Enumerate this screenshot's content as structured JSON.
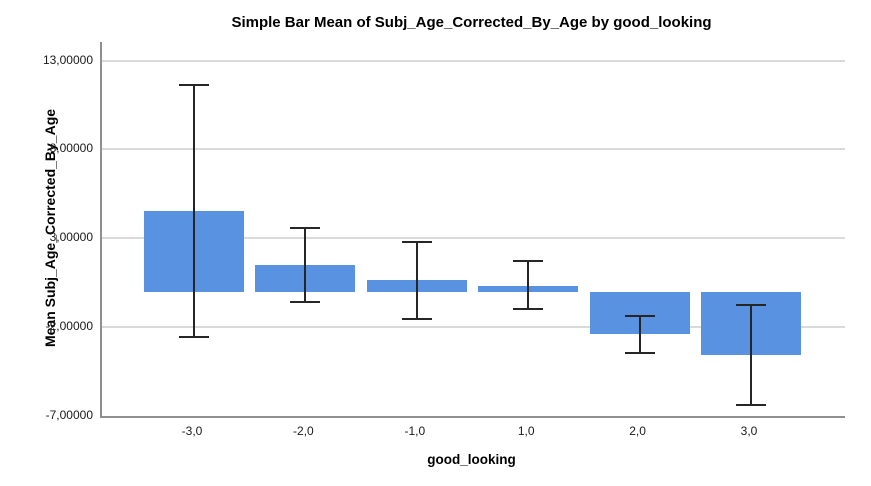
{
  "chart_data": {
    "type": "bar",
    "title": "Simple Bar Mean of Subj_Age_Corrected_By_Age by good_looking",
    "xlabel": "good_looking",
    "ylabel": "Mean Subj_Age_Corrected_By_Age",
    "categories": [
      "-3,0",
      "-2,0",
      "-1,0",
      "1,0",
      "2,0",
      "3,0"
    ],
    "values": [
      4.55,
      1.5,
      0.65,
      0.3,
      -2.4,
      -3.55
    ],
    "error_low": [
      -2.55,
      -0.6,
      -1.55,
      -1.0,
      -3.45,
      -6.4
    ],
    "error_high": [
      11.65,
      3.6,
      2.8,
      1.7,
      -1.35,
      -0.75
    ],
    "y_tick_labels": [
      "13,00000",
      "8,00000",
      "3,00000",
      "-2,00000",
      "-7,00000"
    ],
    "y_tick_values": [
      13,
      8,
      3,
      -2,
      -7
    ],
    "ylim": [
      -7,
      14.05
    ],
    "grid": true,
    "legend_position": "none",
    "colors": {
      "bar": "#5892E0",
      "error_bar": "#262626",
      "axis_line": "#8F8F8F",
      "gridline": "#DADADA",
      "tick_text": "#1A1A1A",
      "title_text": "#000000"
    }
  }
}
